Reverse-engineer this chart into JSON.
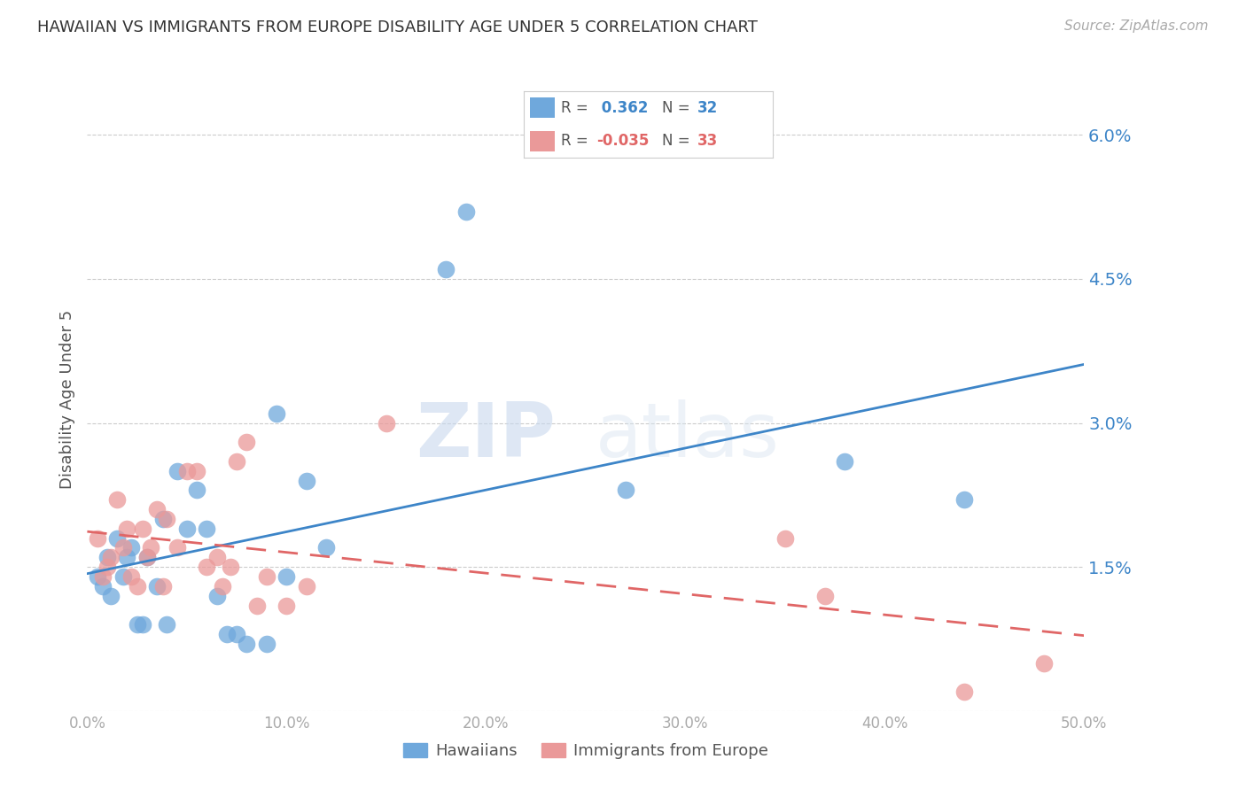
{
  "title": "HAWAIIAN VS IMMIGRANTS FROM EUROPE DISABILITY AGE UNDER 5 CORRELATION CHART",
  "source": "Source: ZipAtlas.com",
  "ylabel": "Disability Age Under 5",
  "x_min": 0.0,
  "x_max": 0.5,
  "y_min": 0.0,
  "y_max": 0.065,
  "x_ticks": [
    0.0,
    0.1,
    0.2,
    0.3,
    0.4,
    0.5
  ],
  "x_tick_labels": [
    "0.0%",
    "10.0%",
    "20.0%",
    "30.0%",
    "40.0%",
    "50.0%"
  ],
  "y_ticks": [
    0.0,
    0.015,
    0.03,
    0.045,
    0.06
  ],
  "y_tick_labels": [
    "",
    "1.5%",
    "3.0%",
    "4.5%",
    "6.0%"
  ],
  "hawaiians_R": 0.362,
  "hawaiians_N": 32,
  "immigrants_R": -0.035,
  "immigrants_N": 33,
  "hawaiian_color": "#6fa8dc",
  "immigrant_color": "#ea9999",
  "trend_hawaiian_color": "#3d85c8",
  "trend_immigrant_color": "#e06666",
  "watermark_zip": "ZIP",
  "watermark_atlas": "atlas",
  "hawaiians_x": [
    0.005,
    0.008,
    0.01,
    0.012,
    0.015,
    0.018,
    0.02,
    0.022,
    0.025,
    0.028,
    0.03,
    0.035,
    0.038,
    0.04,
    0.045,
    0.05,
    0.055,
    0.06,
    0.065,
    0.07,
    0.075,
    0.08,
    0.09,
    0.095,
    0.1,
    0.11,
    0.12,
    0.18,
    0.19,
    0.38,
    0.44,
    0.27
  ],
  "hawaiians_y": [
    0.014,
    0.013,
    0.016,
    0.012,
    0.018,
    0.014,
    0.016,
    0.017,
    0.009,
    0.009,
    0.016,
    0.013,
    0.02,
    0.009,
    0.025,
    0.019,
    0.023,
    0.019,
    0.012,
    0.008,
    0.008,
    0.007,
    0.007,
    0.031,
    0.014,
    0.024,
    0.017,
    0.046,
    0.052,
    0.026,
    0.022,
    0.023
  ],
  "immigrants_x": [
    0.005,
    0.008,
    0.01,
    0.012,
    0.015,
    0.018,
    0.02,
    0.022,
    0.025,
    0.028,
    0.03,
    0.032,
    0.035,
    0.038,
    0.04,
    0.045,
    0.05,
    0.055,
    0.06,
    0.065,
    0.068,
    0.072,
    0.075,
    0.08,
    0.085,
    0.09,
    0.1,
    0.11,
    0.15,
    0.35,
    0.37,
    0.44,
    0.48
  ],
  "immigrants_y": [
    0.018,
    0.014,
    0.015,
    0.016,
    0.022,
    0.017,
    0.019,
    0.014,
    0.013,
    0.019,
    0.016,
    0.017,
    0.021,
    0.013,
    0.02,
    0.017,
    0.025,
    0.025,
    0.015,
    0.016,
    0.013,
    0.015,
    0.026,
    0.028,
    0.011,
    0.014,
    0.011,
    0.013,
    0.03,
    0.018,
    0.012,
    0.002,
    0.005
  ],
  "background_color": "#ffffff",
  "grid_color": "#cccccc"
}
